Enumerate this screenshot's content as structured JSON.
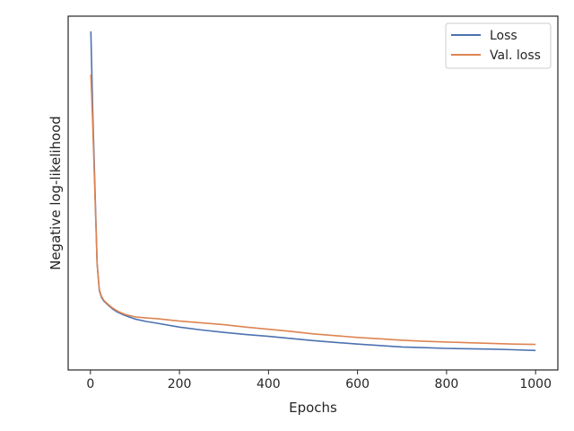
{
  "chart_data": {
    "type": "line",
    "xlabel": "Epochs",
    "ylabel": "Negative log-likelihood",
    "xlim": [
      -50,
      1050
    ],
    "ylim": [
      0.0,
      1.0
    ],
    "x_ticks": [
      0,
      200,
      400,
      600,
      800,
      1000
    ],
    "x_tick_labels": [
      "0",
      "200",
      "400",
      "600",
      "800",
      "1000"
    ],
    "y_ticks_shown": false,
    "grid": false,
    "legend_position": "top-right",
    "series": [
      {
        "name": "Loss",
        "color": "#4c72b0",
        "x": [
          1,
          5,
          10,
          15,
          20,
          25,
          30,
          40,
          50,
          60,
          70,
          80,
          100,
          125,
          150,
          200,
          250,
          300,
          350,
          400,
          450,
          500,
          550,
          600,
          650,
          700,
          750,
          800,
          850,
          900,
          950,
          1000
        ],
        "y": [
          0.957,
          0.74,
          0.52,
          0.3,
          0.225,
          0.205,
          0.195,
          0.183,
          0.172,
          0.164,
          0.158,
          0.153,
          0.144,
          0.137,
          0.132,
          0.121,
          0.113,
          0.106,
          0.1,
          0.095,
          0.089,
          0.083,
          0.078,
          0.073,
          0.069,
          0.065,
          0.063,
          0.061,
          0.06,
          0.059,
          0.057,
          0.055
        ]
      },
      {
        "name": "Val. loss",
        "color": "#dd8452",
        "x": [
          1,
          5,
          10,
          15,
          20,
          25,
          30,
          40,
          50,
          60,
          70,
          80,
          100,
          125,
          150,
          200,
          250,
          300,
          350,
          400,
          450,
          500,
          550,
          600,
          650,
          700,
          750,
          800,
          850,
          900,
          950,
          1000
        ],
        "y": [
          0.835,
          0.7,
          0.5,
          0.3,
          0.228,
          0.208,
          0.197,
          0.185,
          0.175,
          0.167,
          0.161,
          0.156,
          0.15,
          0.147,
          0.145,
          0.138,
          0.133,
          0.128,
          0.121,
          0.115,
          0.109,
          0.102,
          0.097,
          0.092,
          0.088,
          0.084,
          0.081,
          0.079,
          0.077,
          0.075,
          0.073,
          0.072
        ]
      }
    ]
  }
}
